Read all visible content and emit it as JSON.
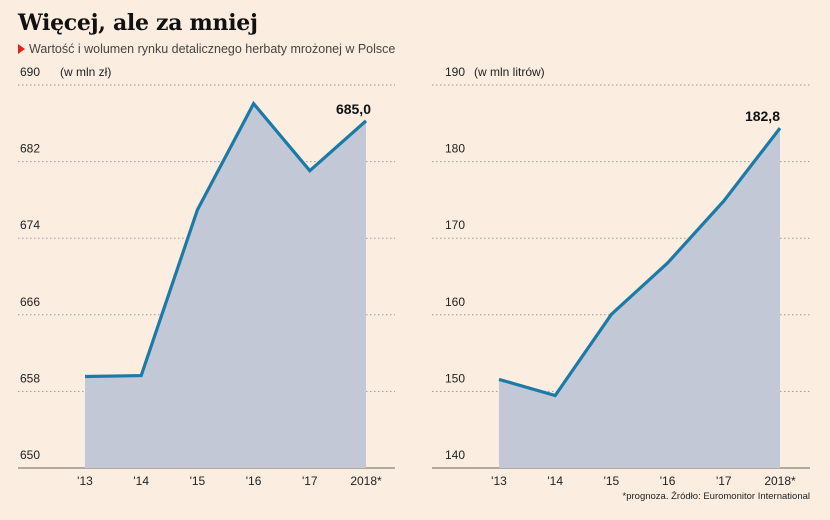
{
  "title": "Więcej, ale za mniej",
  "subtitle": "Wartość i wolumen rynku detalicznego herbaty mrożonej w Polsce",
  "source": "*prognoza. Źródło: Euromonitor International",
  "colors": {
    "line": "#1b7ba6",
    "area": "#c2c8d6",
    "background": "#fbeee0",
    "accent": "#e2231a",
    "grid": "#9a9a9a"
  },
  "chart_data": [
    {
      "type": "area",
      "title": "",
      "unit_label": "(w mln zł)",
      "categories": [
        "'13",
        "'14",
        "'15",
        "'16",
        "'17",
        "2018*"
      ],
      "values": [
        658.3,
        658.4,
        675.7,
        686.8,
        679.8,
        685.0
      ],
      "ylim": [
        650,
        690
      ],
      "yticks": [
        650,
        658,
        666,
        674,
        682,
        690
      ],
      "highlight_label": "685,0",
      "grid": true
    },
    {
      "type": "area",
      "title": "",
      "unit_label": "(w mln litrów)",
      "categories": [
        "'13",
        "'14",
        "'15",
        "'16",
        "'17",
        "2018*"
      ],
      "values": [
        150.0,
        147.9,
        158.5,
        165.2,
        173.3,
        182.8
      ],
      "ylim": [
        140,
        190
      ],
      "yticks": [
        140,
        150,
        160,
        170,
        180,
        190
      ],
      "highlight_label": "182,8",
      "grid": true
    }
  ]
}
